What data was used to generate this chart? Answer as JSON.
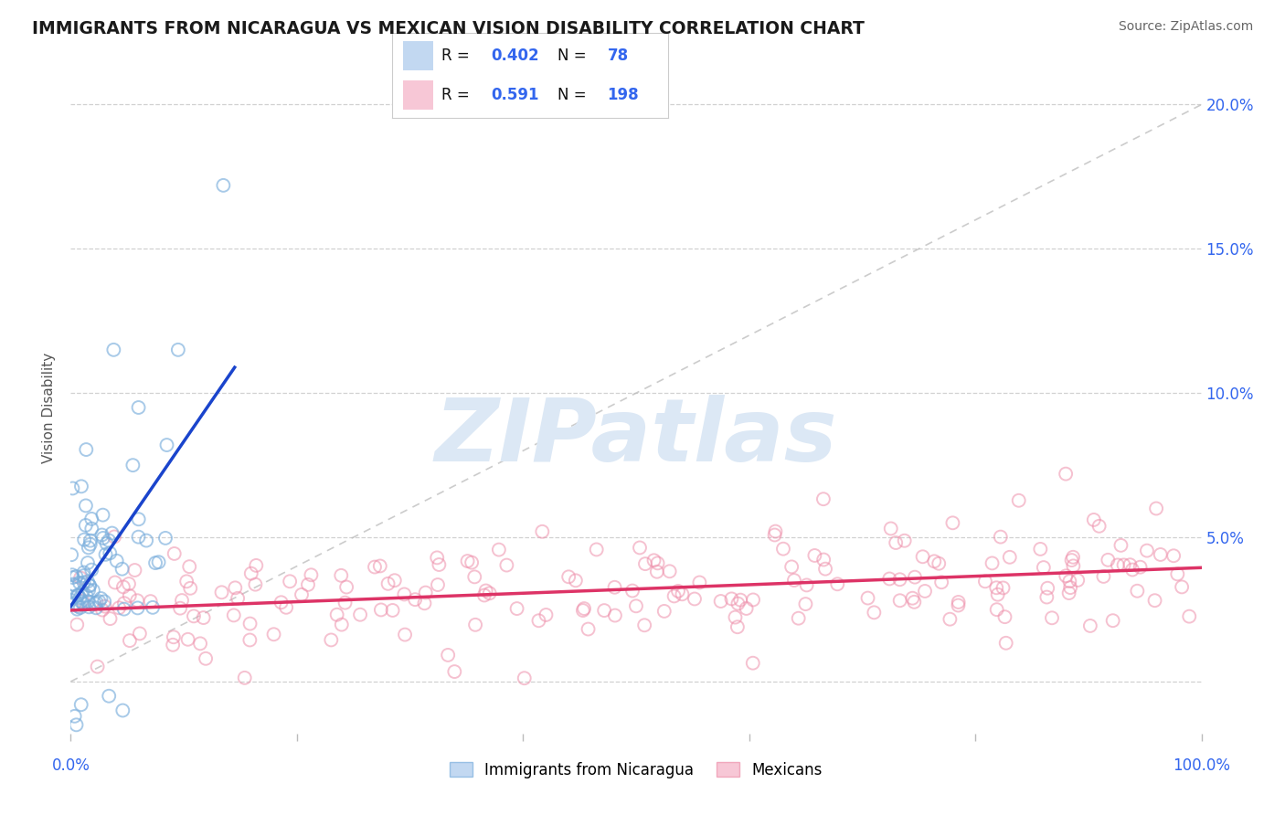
{
  "title": "IMMIGRANTS FROM NICARAGUA VS MEXICAN VISION DISABILITY CORRELATION CHART",
  "source": "Source: ZipAtlas.com",
  "ylabel": "Vision Disability",
  "yticks": [
    0.0,
    0.05,
    0.1,
    0.15,
    0.2
  ],
  "ytick_labels_right": [
    "",
    "5.0%",
    "10.0%",
    "15.0%",
    "20.0%"
  ],
  "xmin": 0.0,
  "xmax": 1.0,
  "ymin": -0.018,
  "ymax": 0.208,
  "r_nicaragua": 0.402,
  "n_nicaragua": 78,
  "r_mexican": 0.591,
  "n_mexican": 198,
  "blue_dot_color": "#a8c8ec",
  "pink_dot_color": "#f5b0c5",
  "blue_edge_color": "#7aaedc",
  "pink_edge_color": "#ee8faa",
  "blue_line_color": "#1a44cc",
  "pink_line_color": "#dd3366",
  "legend_r_color": "#3366ee",
  "watermark_color": "#dce8f5",
  "ref_line_color": "#bbbbbb",
  "title_color": "#1a1a1a",
  "title_fontsize": 13.5,
  "source_color": "#666666",
  "source_fontsize": 10,
  "legend_label_blue": "Immigrants from Nicaragua",
  "legend_label_pink": "Mexicans",
  "grid_color": "#cccccc",
  "leg_r_label": "R = ",
  "leg_n_label": "N = ",
  "leg_r1": "0.402",
  "leg_n1": "78",
  "leg_r2": "0.591",
  "leg_n2": "198"
}
